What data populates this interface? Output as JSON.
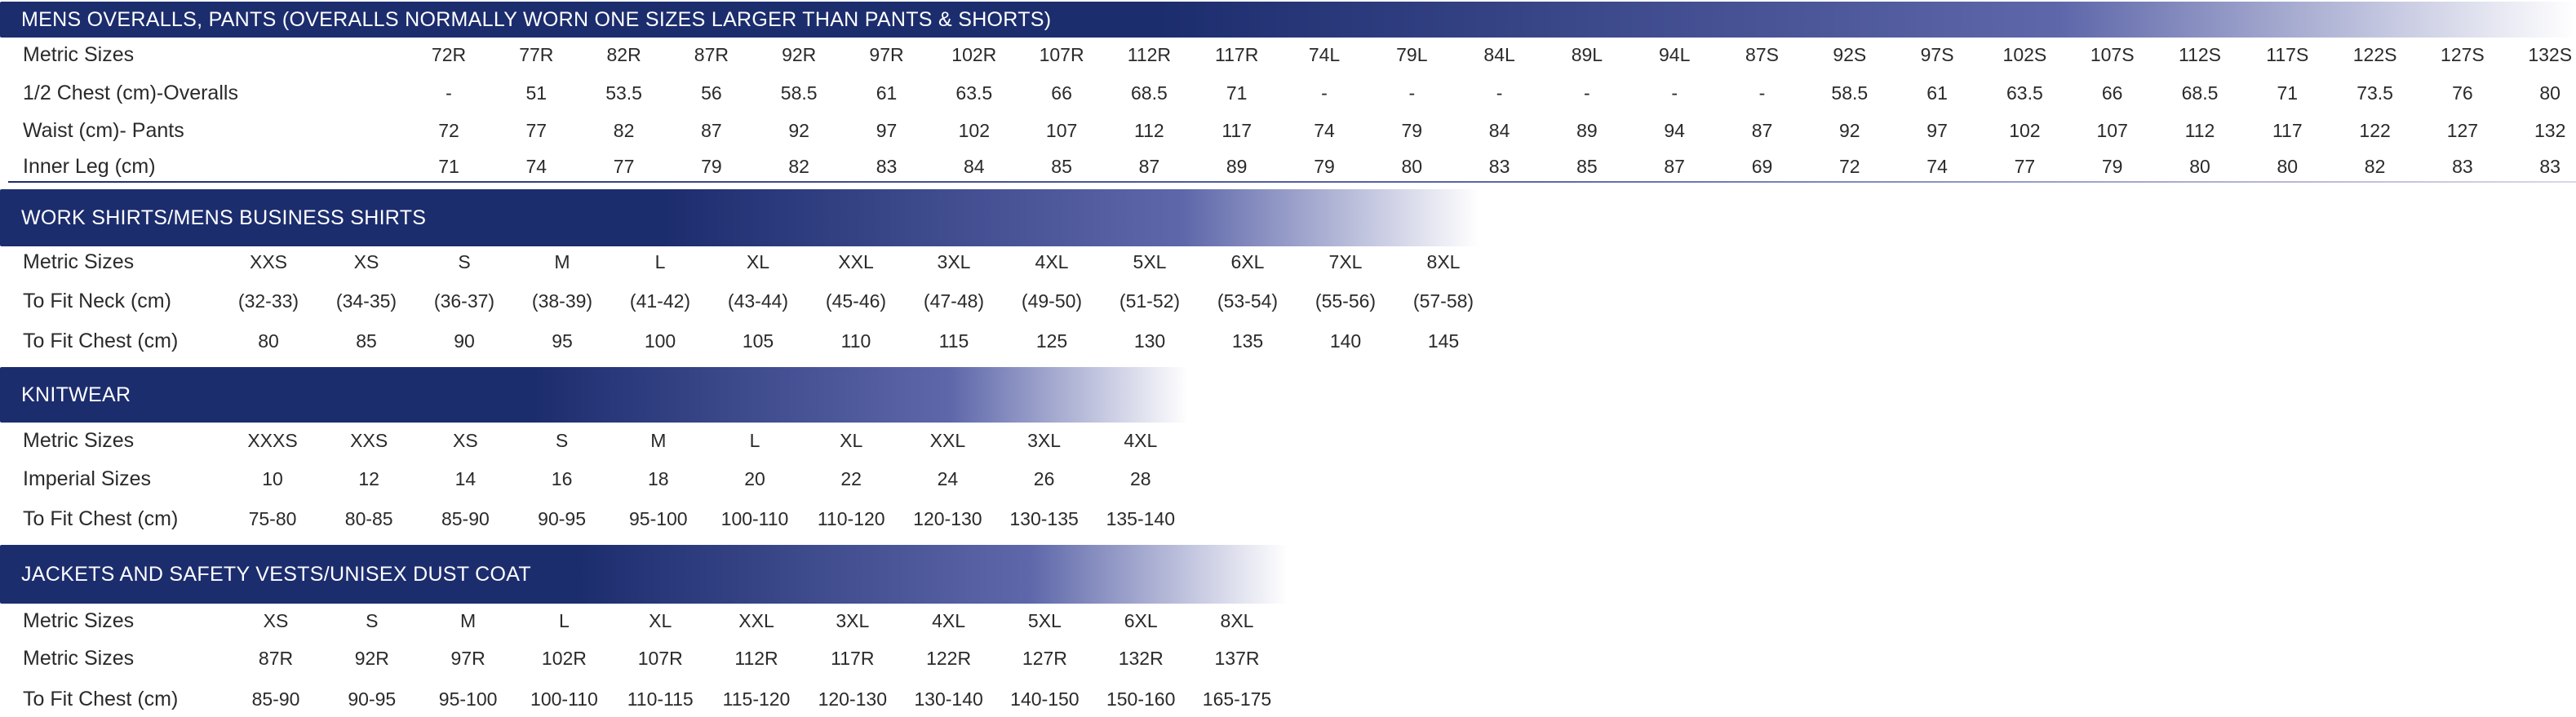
{
  "colors": {
    "banner_dark": "#1c2d6e",
    "banner_mid": "#5e67aa",
    "banner_light": "#ffffff",
    "text": "#2a2a2a"
  },
  "sections": [
    {
      "id": "overalls",
      "title": "MENS OVERALLS, PANTS (OVERALLS NORMALLY WORN ONE SIZES LARGER THAN PANTS & SHORTS)",
      "rows": [
        {
          "label": "Metric Sizes",
          "values": [
            "72R",
            "77R",
            "82R",
            "87R",
            "92R",
            "97R",
            "102R",
            "107R",
            "112R",
            "117R",
            "74L",
            "79L",
            "84L",
            "89L",
            "94L",
            "87S",
            "92S",
            "97S",
            "102S",
            "107S",
            "112S",
            "117S",
            "122S",
            "127S",
            "132S"
          ]
        },
        {
          "label": "1/2 Chest (cm)-Overalls",
          "values": [
            "-",
            "51",
            "53.5",
            "56",
            "58.5",
            "61",
            "63.5",
            "66",
            "68.5",
            "71",
            "-",
            "-",
            "-",
            "-",
            "-",
            "-",
            "58.5",
            "61",
            "63.5",
            "66",
            "68.5",
            "71",
            "73.5",
            "76",
            "80"
          ]
        },
        {
          "label": "Waist (cm)- Pants",
          "values": [
            "72",
            "77",
            "82",
            "87",
            "92",
            "97",
            "102",
            "107",
            "112",
            "117",
            "74",
            "79",
            "84",
            "89",
            "94",
            "87",
            "92",
            "97",
            "102",
            "107",
            "112",
            "117",
            "122",
            "127",
            "132"
          ]
        },
        {
          "label": "Inner Leg (cm)",
          "values": [
            "71",
            "74",
            "77",
            "79",
            "82",
            "83",
            "84",
            "85",
            "87",
            "89",
            "79",
            "80",
            "83",
            "85",
            "87",
            "69",
            "72",
            "74",
            "77",
            "79",
            "80",
            "80",
            "82",
            "83",
            "83"
          ]
        }
      ]
    },
    {
      "id": "shirts",
      "title": "WORK SHIRTS/MENS BUSINESS SHIRTS",
      "rows": [
        {
          "label": "Metric Sizes",
          "values": [
            "XXS",
            "XS",
            "S",
            "M",
            "L",
            "XL",
            "XXL",
            "3XL",
            "4XL",
            "5XL",
            "6XL",
            "7XL",
            "8XL"
          ]
        },
        {
          "label": "To Fit Neck (cm)",
          "values": [
            "(32-33)",
            "(34-35)",
            "(36-37)",
            "(38-39)",
            "(41-42)",
            "(43-44)",
            "(45-46)",
            "(47-48)",
            "(49-50)",
            "(51-52)",
            "(53-54)",
            "(55-56)",
            "(57-58)"
          ]
        },
        {
          "label": "To Fit Chest (cm)",
          "values": [
            "80",
            "85",
            "90",
            "95",
            "100",
            "105",
            "110",
            "115",
            "125",
            "130",
            "135",
            "140",
            "145"
          ]
        }
      ]
    },
    {
      "id": "knitwear",
      "title": "KNITWEAR",
      "rows": [
        {
          "label": "Metric Sizes",
          "values": [
            "XXXS",
            "XXS",
            "XS",
            "S",
            "M",
            "L",
            "XL",
            "XXL",
            "3XL",
            "4XL"
          ]
        },
        {
          "label": "Imperial Sizes",
          "values": [
            "10",
            "12",
            "14",
            "16",
            "18",
            "20",
            "22",
            "24",
            "26",
            "28"
          ]
        },
        {
          "label": "To Fit Chest (cm)",
          "values": [
            "75-80",
            "80-85",
            "85-90",
            "90-95",
            "95-100",
            "100-110",
            "110-120",
            "120-130",
            "130-135",
            "135-140"
          ]
        }
      ]
    },
    {
      "id": "jackets",
      "title": "JACKETS AND SAFETY VESTS/UNISEX DUST COAT",
      "rows": [
        {
          "label": "Metric Sizes",
          "values": [
            "XS",
            "S",
            "M",
            "L",
            "XL",
            "XXL",
            "3XL",
            "4XL",
            "5XL",
            "6XL",
            "8XL"
          ]
        },
        {
          "label": "Metric Sizes",
          "values": [
            "87R",
            "92R",
            "97R",
            "102R",
            "107R",
            "112R",
            "117R",
            "122R",
            "127R",
            "132R",
            "137R"
          ]
        },
        {
          "label": "To Fit Chest (cm)",
          "values": [
            "85-90",
            "90-95",
            "95-100",
            "100-110",
            "110-115",
            "115-120",
            "120-130",
            "130-140",
            "140-150",
            "150-160",
            "165-175"
          ]
        }
      ]
    }
  ]
}
